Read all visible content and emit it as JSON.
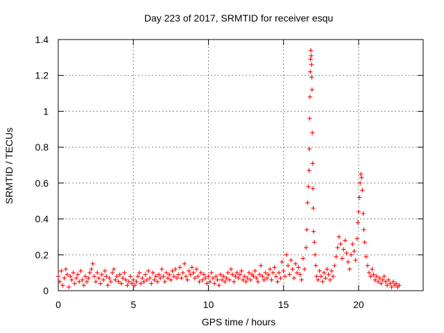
{
  "chart_data": {
    "type": "scatter",
    "title": "Day 223 of 2017, SRMTID for receiver esqu",
    "xlabel": "GPS time / hours",
    "ylabel": "SRMTID / TECUs",
    "xlim": [
      0,
      24.3
    ],
    "ylim": [
      0,
      1.4
    ],
    "xticks": [
      0,
      5,
      10,
      15,
      20
    ],
    "yticks": [
      0,
      0.2,
      0.4,
      0.6,
      0.8,
      1,
      1.2,
      1.4
    ],
    "grid": true,
    "series": [
      {
        "name": "SRMTID",
        "color": "#ff0000",
        "marker": "plus",
        "x": [
          0.0,
          0.1,
          0.2,
          0.3,
          0.4,
          0.5,
          0.6,
          0.7,
          0.8,
          0.9,
          1.0,
          1.1,
          1.2,
          1.3,
          1.4,
          1.5,
          1.6,
          1.7,
          1.8,
          1.9,
          2.0,
          2.1,
          2.2,
          2.3,
          2.4,
          2.5,
          2.6,
          2.7,
          2.8,
          2.9,
          3.0,
          3.1,
          3.2,
          3.3,
          3.4,
          3.5,
          3.6,
          3.7,
          3.8,
          3.9,
          4.0,
          4.1,
          4.2,
          4.3,
          4.4,
          4.5,
          4.6,
          4.7,
          4.8,
          4.9,
          5.0,
          5.1,
          5.2,
          5.3,
          5.4,
          5.5,
          5.6,
          5.7,
          5.8,
          5.9,
          6.0,
          6.1,
          6.2,
          6.3,
          6.4,
          6.5,
          6.6,
          6.7,
          6.8,
          6.9,
          7.0,
          7.1,
          7.2,
          7.3,
          7.4,
          7.5,
          7.6,
          7.7,
          7.8,
          7.9,
          8.0,
          8.1,
          8.2,
          8.3,
          8.4,
          8.5,
          8.6,
          8.7,
          8.8,
          8.9,
          9.0,
          9.1,
          9.2,
          9.3,
          9.4,
          9.5,
          9.6,
          9.7,
          9.8,
          9.9,
          10.0,
          10.1,
          10.2,
          10.3,
          10.4,
          10.5,
          10.6,
          10.7,
          10.8,
          10.9,
          11.0,
          11.1,
          11.2,
          11.3,
          11.4,
          11.5,
          11.6,
          11.7,
          11.8,
          11.9,
          12.0,
          12.1,
          12.2,
          12.3,
          12.4,
          12.5,
          12.6,
          12.7,
          12.8,
          12.9,
          13.0,
          13.1,
          13.2,
          13.3,
          13.4,
          13.5,
          13.6,
          13.7,
          13.8,
          13.9,
          14.0,
          14.1,
          14.2,
          14.3,
          14.4,
          14.5,
          14.6,
          14.7,
          14.8,
          14.9,
          15.0,
          15.1,
          15.2,
          15.3,
          15.4,
          15.5,
          15.6,
          15.7,
          15.8,
          15.9,
          16.0,
          16.1,
          16.2,
          16.3,
          16.4,
          16.5,
          16.55,
          16.6,
          16.65,
          16.7,
          16.72,
          16.74,
          16.76,
          16.78,
          16.8,
          16.82,
          16.84,
          16.86,
          16.88,
          16.9,
          16.92,
          16.94,
          16.96,
          16.98,
          17.0,
          17.05,
          17.1,
          17.15,
          17.2,
          17.3,
          17.4,
          17.5,
          17.6,
          17.7,
          17.8,
          17.9,
          18.0,
          18.1,
          18.2,
          18.3,
          18.4,
          18.5,
          18.6,
          18.7,
          18.8,
          18.9,
          19.0,
          19.1,
          19.2,
          19.3,
          19.4,
          19.5,
          19.6,
          19.7,
          19.8,
          19.9,
          19.95,
          20.0,
          20.05,
          20.1,
          20.15,
          20.2,
          20.25,
          20.3,
          20.35,
          20.4,
          20.5,
          20.6,
          20.7,
          20.8,
          20.9,
          21.0,
          21.1,
          21.2,
          21.3,
          21.4,
          21.5,
          21.6,
          21.7,
          21.8,
          21.9,
          22.0,
          22.1,
          22.2,
          22.3,
          22.4,
          22.5,
          22.6,
          22.7
        ],
        "y": [
          0.08,
          0.05,
          0.11,
          0.03,
          0.07,
          0.12,
          0.09,
          0.02,
          0.08,
          0.06,
          0.1,
          0.04,
          0.07,
          0.09,
          0.05,
          0.11,
          0.06,
          0.03,
          0.08,
          0.05,
          0.07,
          0.1,
          0.12,
          0.15,
          0.08,
          0.05,
          0.1,
          0.07,
          0.04,
          0.09,
          0.06,
          0.11,
          0.08,
          0.03,
          0.07,
          0.05,
          0.1,
          0.12,
          0.06,
          0.08,
          0.05,
          0.09,
          0.04,
          0.07,
          0.1,
          0.06,
          0.03,
          0.05,
          0.08,
          0.04,
          0.06,
          0.03,
          0.05,
          0.08,
          0.1,
          0.04,
          0.07,
          0.05,
          0.09,
          0.06,
          0.11,
          0.07,
          0.04,
          0.1,
          0.06,
          0.08,
          0.05,
          0.09,
          0.07,
          0.12,
          0.08,
          0.05,
          0.1,
          0.07,
          0.09,
          0.06,
          0.11,
          0.08,
          0.12,
          0.07,
          0.09,
          0.13,
          0.07,
          0.1,
          0.15,
          0.08,
          0.06,
          0.11,
          0.09,
          0.13,
          0.1,
          0.07,
          0.12,
          0.08,
          0.05,
          0.1,
          0.06,
          0.09,
          0.07,
          0.04,
          0.08,
          0.05,
          0.1,
          0.07,
          0.04,
          0.08,
          0.06,
          0.03,
          0.09,
          0.06,
          0.08,
          0.05,
          0.07,
          0.1,
          0.06,
          0.12,
          0.09,
          0.05,
          0.08,
          0.1,
          0.07,
          0.09,
          0.11,
          0.06,
          0.08,
          0.05,
          0.07,
          0.1,
          0.06,
          0.09,
          0.08,
          0.11,
          0.07,
          0.05,
          0.09,
          0.14,
          0.08,
          0.06,
          0.1,
          0.07,
          0.09,
          0.12,
          0.06,
          0.1,
          0.13,
          0.08,
          0.05,
          0.1,
          0.07,
          0.16,
          0.11,
          0.08,
          0.2,
          0.14,
          0.09,
          0.17,
          0.12,
          0.07,
          0.15,
          0.1,
          0.13,
          0.09,
          0.06,
          0.18,
          0.12,
          0.24,
          0.34,
          0.49,
          0.58,
          0.67,
          0.79,
          0.96,
          1.08,
          1.22,
          1.29,
          1.34,
          1.31,
          1.26,
          1.19,
          1.12,
          0.88,
          0.71,
          0.57,
          0.46,
          0.33,
          0.27,
          0.2,
          0.14,
          0.08,
          0.06,
          0.11,
          0.08,
          0.05,
          0.1,
          0.07,
          0.12,
          0.09,
          0.06,
          0.11,
          0.08,
          0.14,
          0.19,
          0.24,
          0.3,
          0.26,
          0.18,
          0.23,
          0.28,
          0.21,
          0.16,
          0.12,
          0.2,
          0.26,
          0.22,
          0.17,
          0.29,
          0.38,
          0.44,
          0.52,
          0.6,
          0.65,
          0.63,
          0.56,
          0.43,
          0.34,
          0.27,
          0.19,
          0.14,
          0.1,
          0.08,
          0.12,
          0.09,
          0.06,
          0.08,
          0.05,
          0.07,
          0.04,
          0.06,
          0.08,
          0.05,
          0.03,
          0.06,
          0.04,
          0.02,
          0.05,
          0.03,
          0.04,
          0.02,
          0.03
        ]
      }
    ]
  }
}
